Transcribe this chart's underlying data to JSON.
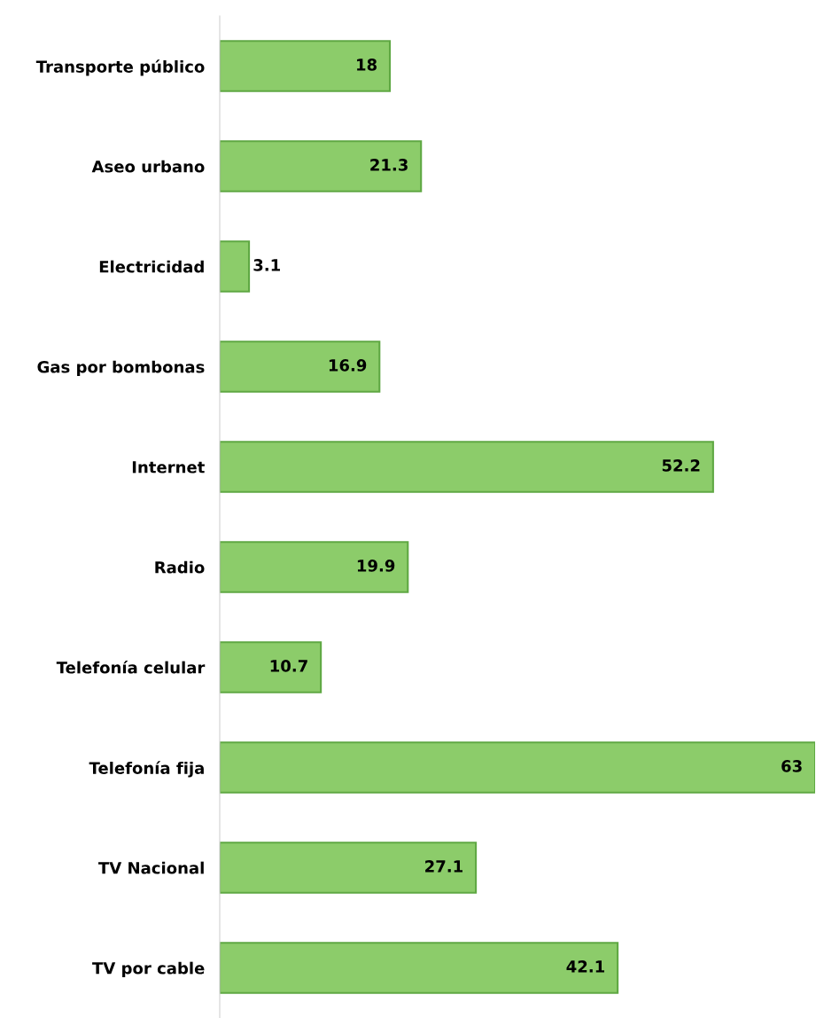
{
  "chart_data": {
    "type": "bar",
    "orientation": "horizontal",
    "data_labels": true,
    "grid": false,
    "legend": false,
    "color": "#8ccc6a",
    "categories": [
      "Transporte público",
      "Aseo urbano",
      "Electricidad",
      "Gas por bombonas",
      "Internet",
      "Radio",
      "Telefonía celular",
      "Telefonía fija",
      "TV Nacional",
      "TV por cable"
    ],
    "values": [
      18,
      21.3,
      3.1,
      16.9,
      52.2,
      19.9,
      10.7,
      63,
      27.1,
      42.1
    ]
  }
}
